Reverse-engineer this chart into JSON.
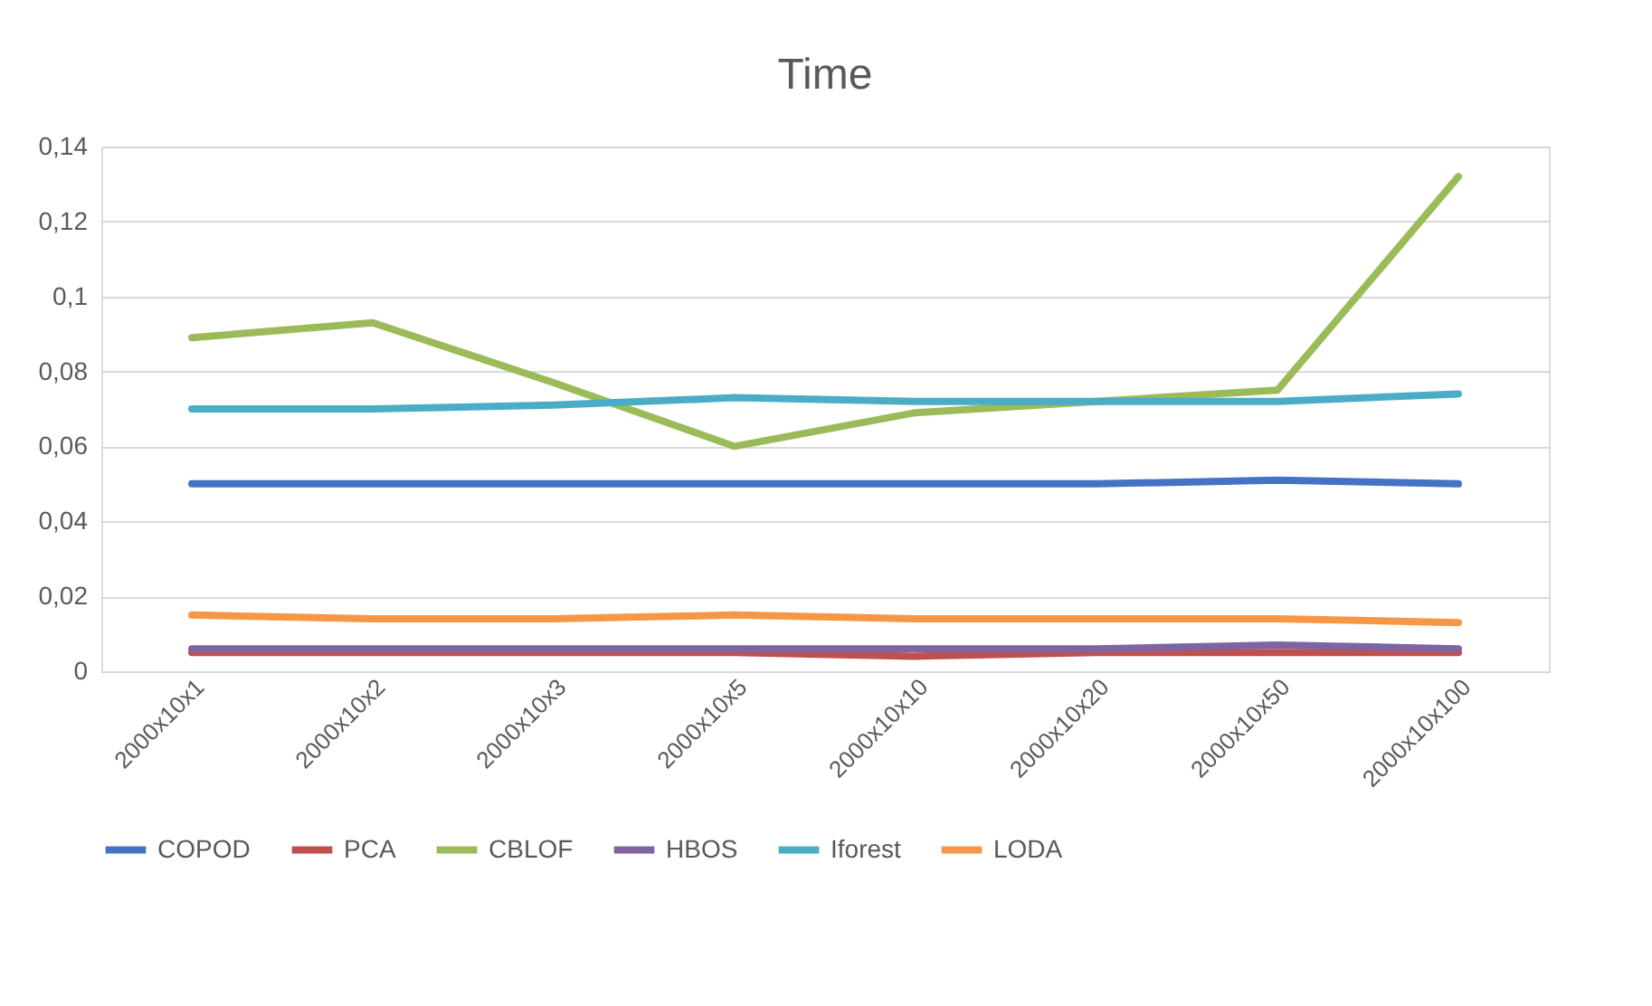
{
  "chart_data": {
    "type": "line",
    "title": "Time",
    "categories": [
      "2000x10x1",
      "2000x10x2",
      "2000x10x3",
      "2000x10x5",
      "2000x10x10",
      "2000x10x20",
      "2000x10x50",
      "2000x10x100"
    ],
    "series": [
      {
        "name": "COPOD",
        "color": "#4472c4",
        "values": [
          0.05,
          0.05,
          0.05,
          0.05,
          0.05,
          0.05,
          0.051,
          0.05
        ]
      },
      {
        "name": "PCA",
        "color": "#c0504d",
        "values": [
          0.005,
          0.005,
          0.005,
          0.005,
          0.004,
          0.005,
          0.005,
          0.005
        ]
      },
      {
        "name": "CBLOF",
        "color": "#9bbb59",
        "values": [
          0.089,
          0.093,
          0.077,
          0.06,
          0.069,
          0.072,
          0.075,
          0.132
        ]
      },
      {
        "name": "HBOS",
        "color": "#8064a2",
        "values": [
          0.006,
          0.006,
          0.006,
          0.006,
          0.006,
          0.006,
          0.007,
          0.006
        ]
      },
      {
        "name": "Iforest",
        "color": "#4bacc6",
        "values": [
          0.07,
          0.07,
          0.071,
          0.073,
          0.072,
          0.072,
          0.072,
          0.074
        ]
      },
      {
        "name": "LODA",
        "color": "#f79646",
        "values": [
          0.015,
          0.014,
          0.014,
          0.015,
          0.014,
          0.014,
          0.014,
          0.013
        ]
      }
    ],
    "ylim": [
      0,
      0.14
    ],
    "yticks": [
      0,
      {
        "value": 0.02,
        "label": "0,02"
      },
      {
        "value": 0.04,
        "label": "0,04"
      },
      {
        "value": 0.06,
        "label": "0,06"
      },
      {
        "value": 0.08,
        "label": "0,08"
      },
      {
        "value": 0.1,
        "label": "0,1"
      },
      {
        "value": 0.12,
        "label": "0,12"
      },
      {
        "value": 0.14,
        "label": "0,14"
      }
    ],
    "grid": "y",
    "legend": "bottom",
    "marker": "none",
    "line_style": "solid"
  }
}
